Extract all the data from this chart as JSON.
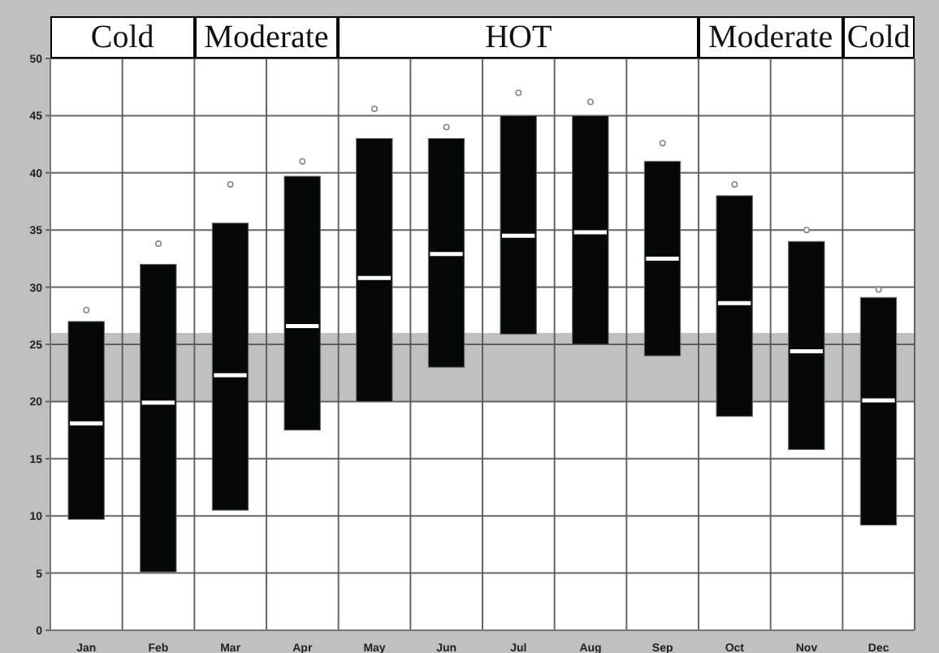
{
  "chart_data": {
    "type": "box",
    "categories": [
      "Jan",
      "Feb",
      "Mar",
      "Apr",
      "May",
      "Jun",
      "Jul",
      "Aug",
      "Sep",
      "Oct",
      "Nov",
      "Dec"
    ],
    "boxes": [
      {
        "low": 9.7,
        "q1": 9.7,
        "median": 18.1,
        "q3": 27,
        "high": 27,
        "outliers": [
          28
        ]
      },
      {
        "low": 5.1,
        "q1": 5.1,
        "median": 19.9,
        "q3": 32,
        "high": 32,
        "outliers": [
          33.8
        ]
      },
      {
        "low": 10.5,
        "q1": 10.5,
        "median": 22.3,
        "q3": 35.6,
        "high": 35.6,
        "outliers": [
          39
        ]
      },
      {
        "low": 17.5,
        "q1": 17.5,
        "median": 26.6,
        "q3": 39.7,
        "high": 39.7,
        "outliers": [
          41
        ]
      },
      {
        "low": 20,
        "q1": 20,
        "median": 30.8,
        "q3": 43,
        "high": 43,
        "outliers": [
          45.6
        ]
      },
      {
        "low": 23,
        "q1": 23,
        "median": 32.9,
        "q3": 43,
        "high": 43,
        "outliers": [
          44
        ]
      },
      {
        "low": 25.9,
        "q1": 25.9,
        "median": 34.5,
        "q3": 45,
        "high": 45,
        "outliers": [
          47
        ]
      },
      {
        "low": 25,
        "q1": 25,
        "median": 34.8,
        "q3": 45,
        "high": 45,
        "outliers": [
          46.2
        ]
      },
      {
        "low": 24,
        "q1": 24,
        "median": 32.5,
        "q3": 41,
        "high": 41,
        "outliers": [
          42.6
        ]
      },
      {
        "low": 18.7,
        "q1": 18.7,
        "median": 28.6,
        "q3": 38,
        "high": 38,
        "outliers": [
          39
        ]
      },
      {
        "low": 15.8,
        "q1": 15.8,
        "median": 24.4,
        "q3": 34,
        "high": 34,
        "outliers": [
          35
        ]
      },
      {
        "low": 9.2,
        "q1": 9.2,
        "median": 20.1,
        "q3": 29.1,
        "high": 29.1,
        "outliers": [
          29.8
        ]
      }
    ],
    "color": "#050808",
    "ylim": [
      0,
      50
    ],
    "yticks": [
      0,
      5,
      10,
      15,
      20,
      25,
      30,
      35,
      40,
      45,
      50
    ],
    "grid": true,
    "bands": [
      {
        "axis": "y",
        "from": 20,
        "to": 26,
        "color": "#c0c0c0"
      },
      {
        "axis": "x",
        "from": "Jan",
        "to": "Feb",
        "label": "Cold"
      },
      {
        "axis": "x",
        "from": "Mar",
        "to": "Apr",
        "label": "Moderate"
      },
      {
        "axis": "x",
        "from": "May",
        "to": "Sep",
        "label": "HOT"
      },
      {
        "axis": "x",
        "from": "Oct",
        "to": "Nov",
        "label": "Moderate"
      },
      {
        "axis": "x",
        "from": "Dec",
        "to": "Dec",
        "label": "Cold"
      }
    ]
  }
}
